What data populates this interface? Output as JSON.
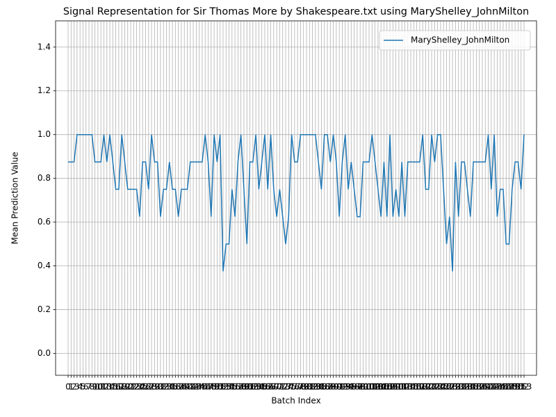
{
  "chart_data": {
    "type": "line",
    "title": "Signal Representation for Sir Thomas More by Shakespeare.txt using MaryShelley_JohnMilton",
    "xlabel": "Batch Index",
    "ylabel": "Mean Prediction Value",
    "x": [
      0,
      1,
      2,
      3,
      4,
      5,
      6,
      7,
      8,
      9,
      10,
      11,
      12,
      13,
      14,
      15,
      16,
      17,
      18,
      19,
      20,
      21,
      22,
      23,
      24,
      25,
      26,
      27,
      28,
      29,
      30,
      31,
      32,
      33,
      34,
      35,
      36,
      37,
      38,
      39,
      40,
      41,
      42,
      43,
      44,
      45,
      46,
      47,
      48,
      49,
      50,
      51,
      52,
      53,
      54,
      55,
      56,
      57,
      58,
      59,
      60,
      61,
      62,
      63,
      64,
      65,
      66,
      67,
      68,
      69,
      70,
      71,
      72,
      73,
      74,
      75,
      76,
      77,
      78,
      79,
      80,
      81,
      82,
      83,
      84,
      85,
      86,
      87,
      88,
      89,
      90,
      91,
      92,
      93,
      94,
      95,
      96,
      97,
      98,
      99,
      100,
      101,
      102,
      103,
      104,
      105,
      106,
      107,
      108,
      109,
      110,
      111,
      112,
      113,
      114,
      115,
      116,
      117,
      118,
      119,
      120,
      121,
      122,
      123,
      124,
      125,
      126,
      127,
      128,
      129,
      130,
      131,
      132,
      133,
      134,
      135,
      136,
      137,
      138,
      139,
      140,
      141,
      142,
      143,
      144,
      145,
      146,
      147,
      148,
      149,
      150,
      151,
      152,
      153
    ],
    "series": [
      {
        "name": "MaryShelley_JohnMilton",
        "color": "#1f77b4",
        "values": [
          0.875,
          0.875,
          0.875,
          1,
          1,
          1,
          1,
          1,
          1,
          0.875,
          0.875,
          0.875,
          1,
          0.875,
          1,
          0.875,
          0.75,
          0.75,
          1,
          0.875,
          0.75,
          0.75,
          0.75,
          0.75,
          0.625,
          0.875,
          0.875,
          0.75,
          1,
          0.875,
          0.875,
          0.625,
          0.75,
          0.75,
          0.875,
          0.75,
          0.75,
          0.625,
          0.75,
          0.75,
          0.75,
          0.875,
          0.875,
          0.875,
          0.875,
          0.875,
          1,
          0.875,
          0.625,
          1,
          0.875,
          1,
          0.375,
          0.5,
          0.5,
          0.75,
          0.625,
          0.875,
          1,
          0.75,
          0.5,
          0.875,
          0.875,
          1,
          0.75,
          0.875,
          1,
          0.75,
          1,
          0.75,
          0.625,
          0.75,
          0.625,
          0.5,
          0.625,
          1,
          0.875,
          0.875,
          1,
          1,
          1,
          1,
          1,
          1,
          0.875,
          0.75,
          1,
          1,
          0.875,
          1,
          0.875,
          0.625,
          0.875,
          1,
          0.75,
          0.875,
          0.75,
          0.625,
          0.625,
          0.875,
          0.875,
          0.875,
          1,
          0.875,
          0.75,
          0.625,
          0.875,
          0.625,
          1,
          0.625,
          0.75,
          0.625,
          0.875,
          0.625,
          0.875,
          0.875,
          0.875,
          0.875,
          0.875,
          1,
          0.75,
          0.75,
          1,
          0.875,
          1,
          1,
          0.75,
          0.5,
          0.625,
          0.375,
          0.875,
          0.625,
          0.875,
          0.875,
          0.75,
          0.625,
          0.875,
          0.875,
          0.875,
          0.875,
          0.875,
          1,
          0.75,
          1,
          0.625,
          0.75,
          0.75,
          0.5,
          0.5,
          0.75,
          0.875,
          0.875,
          0.75,
          1
        ]
      }
    ],
    "xlim": [
      -4.2,
      157.2
    ],
    "xticks": [
      0,
      1,
      2,
      3,
      4,
      5,
      6,
      7,
      8,
      9,
      10,
      11,
      12,
      13,
      14,
      15,
      16,
      17,
      18,
      19,
      20,
      21,
      22,
      23,
      24,
      25,
      26,
      27,
      28,
      29,
      30,
      31,
      32,
      33,
      34,
      35,
      36,
      37,
      38,
      39,
      40,
      41,
      42,
      43,
      44,
      45,
      46,
      47,
      48,
      49,
      50,
      51,
      52,
      53,
      54,
      55,
      56,
      57,
      58,
      59,
      60,
      61,
      62,
      63,
      64,
      65,
      66,
      67,
      68,
      69,
      70,
      71,
      72,
      73,
      74,
      75,
      76,
      77,
      78,
      79,
      80,
      81,
      82,
      83,
      84,
      85,
      86,
      87,
      88,
      89,
      90,
      91,
      92,
      93,
      94,
      95,
      96,
      97,
      98,
      99,
      100,
      101,
      102,
      103,
      104,
      105,
      106,
      107,
      108,
      109,
      110,
      111,
      112,
      113,
      114,
      115,
      116,
      117,
      118,
      119,
      120,
      121,
      122,
      123,
      124,
      125,
      126,
      127,
      128,
      129,
      130,
      131,
      132,
      133,
      134,
      135,
      136,
      137,
      138,
      139,
      140,
      141,
      142,
      143,
      144,
      145,
      146,
      147,
      148,
      149,
      150,
      151,
      152,
      153
    ],
    "ylim": [
      -0.1,
      1.52
    ],
    "yticks": [
      {
        "value": 0,
        "label": "0.0"
      },
      0.2,
      0.4,
      0.6,
      0.8,
      {
        "value": 1,
        "label": "1.0"
      },
      1.2,
      1.4
    ],
    "grid": true,
    "legend": "upper right"
  }
}
